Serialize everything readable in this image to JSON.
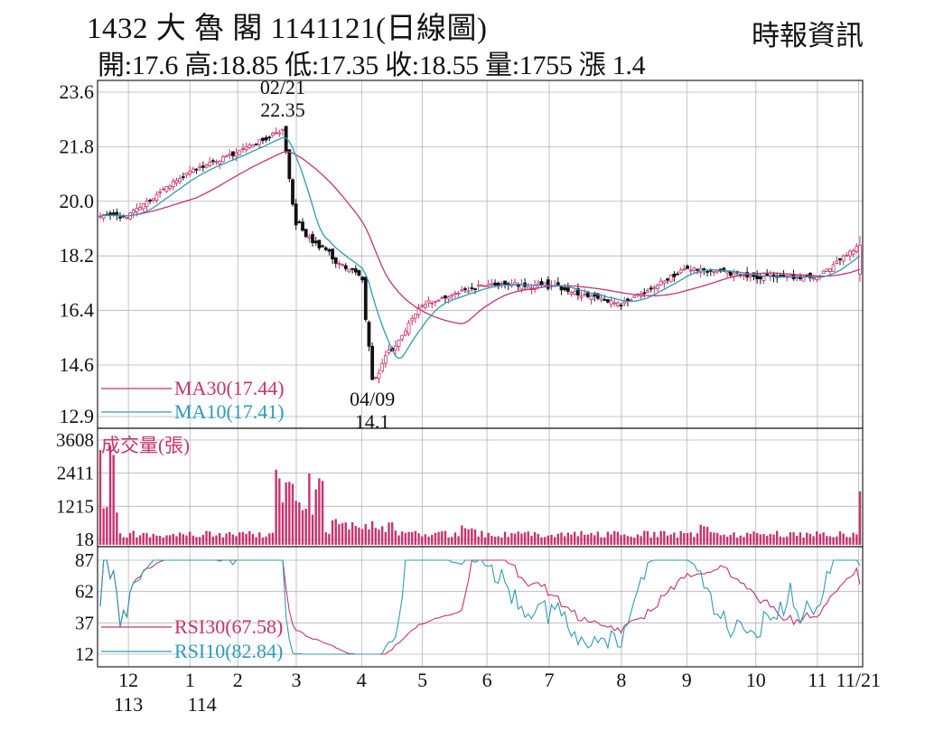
{
  "header": {
    "title": "1432 大 魯 閣 1141121(日線圖)",
    "source": "時報資訊",
    "stats": "開:17.6 高:18.85 低:17.35 收:18.55 量:1755 漲 1.4"
  },
  "chart_data": [
    {
      "type": "candlestick",
      "panel": "price",
      "yticks": [
        "23.6",
        "21.8",
        "20.0",
        "18.2",
        "16.4",
        "14.6",
        "12.9"
      ],
      "ylim": [
        12.9,
        23.6
      ],
      "grid": true,
      "legend": [
        {
          "label": "MA30(17.44)",
          "color": "#c8326e"
        },
        {
          "label": "MA10(17.41)",
          "color": "#2e9bb8"
        }
      ],
      "annotations": [
        {
          "date": "02/21",
          "value": "22.35",
          "kind": "high"
        },
        {
          "date": "04/09",
          "value": "14.1",
          "kind": "low"
        }
      ],
      "key_points": [
        {
          "x": "12",
          "y": 19.5
        },
        {
          "x": "1",
          "y": 21.0
        },
        {
          "x": "2",
          "y": 21.6
        },
        {
          "x": "02/21",
          "y": 22.35
        },
        {
          "x": "3",
          "y": 19.3
        },
        {
          "x": "4",
          "y": 17.3
        },
        {
          "x": "04/09",
          "y": 14.1
        },
        {
          "x": "5",
          "y": 16.6
        },
        {
          "x": "6",
          "y": 17.3
        },
        {
          "x": "7",
          "y": 17.2
        },
        {
          "x": "8",
          "y": 16.6
        },
        {
          "x": "9",
          "y": 17.8
        },
        {
          "x": "10",
          "y": 17.5
        },
        {
          "x": "11",
          "y": 17.5
        },
        {
          "x": "11/21",
          "y": 18.55
        }
      ],
      "last_close": 18.55
    },
    {
      "type": "bar",
      "panel": "volume",
      "label": "成交量(張)",
      "yticks": [
        "3608",
        "2411",
        "1215",
        "18"
      ],
      "ylim": [
        18,
        3608
      ],
      "color": "#c8326e",
      "last_value": 1755
    },
    {
      "type": "line",
      "panel": "rsi",
      "yticks": [
        "87",
        "62",
        "37",
        "12"
      ],
      "ylim": [
        12,
        87
      ],
      "series": [
        {
          "name": "RSI30(67.58)",
          "color": "#c8326e",
          "last_value": 67.58
        },
        {
          "name": "RSI10(82.84)",
          "color": "#2e9bb8",
          "last_value": 82.84
        }
      ]
    }
  ],
  "xaxis": {
    "months": [
      {
        "label": "12",
        "t": 0.037
      },
      {
        "label": "1",
        "t": 0.118
      },
      {
        "label": "2",
        "t": 0.181
      },
      {
        "label": "3",
        "t": 0.258
      },
      {
        "label": "4",
        "t": 0.344
      },
      {
        "label": "5",
        "t": 0.424
      },
      {
        "label": "6",
        "t": 0.509
      },
      {
        "label": "7",
        "t": 0.591
      },
      {
        "label": "8",
        "t": 0.686
      },
      {
        "label": "9",
        "t": 0.772
      },
      {
        "label": "10",
        "t": 0.863
      },
      {
        "label": "11",
        "t": 0.944
      },
      {
        "label": "11/21",
        "t": 0.998
      }
    ],
    "years": [
      {
        "label": "113",
        "t": 0.037
      },
      {
        "label": "114",
        "t": 0.134
      }
    ]
  },
  "colors": {
    "up": "#c8326e",
    "down": "#111111",
    "ma30": "#c8326e",
    "ma10": "#2e9bb8",
    "grid": "#b4b4b4"
  }
}
